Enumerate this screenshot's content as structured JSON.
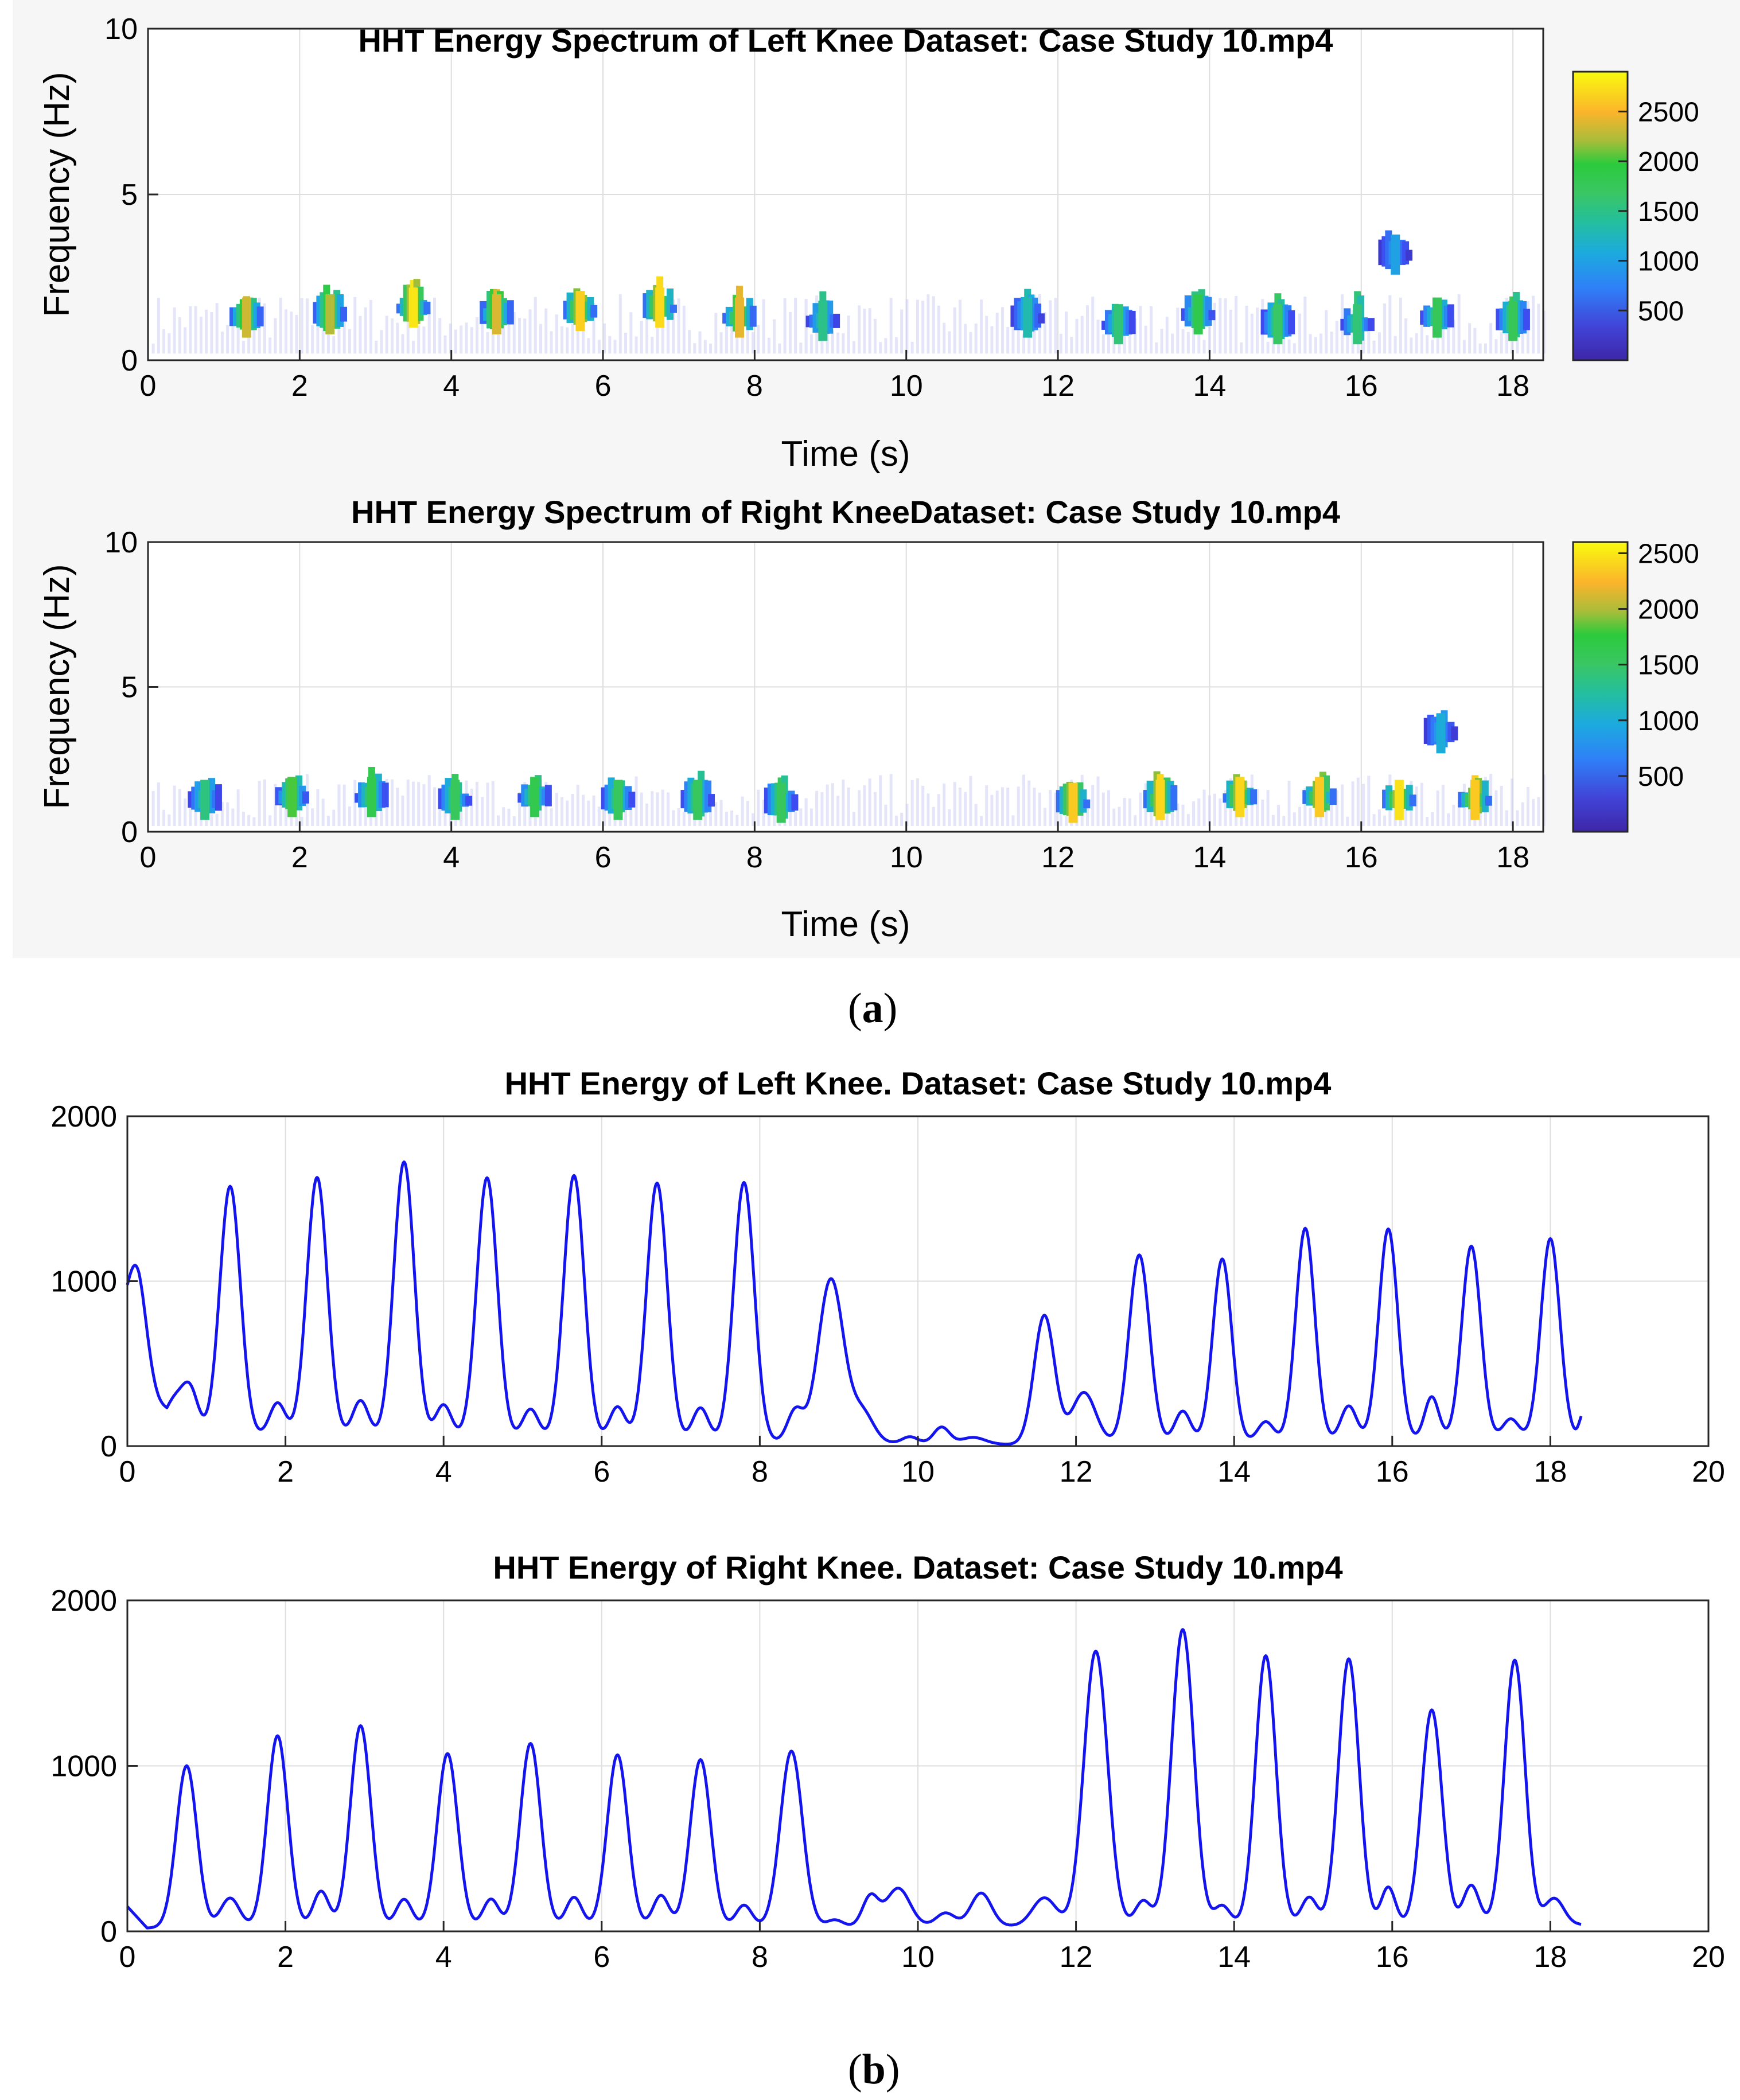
{
  "colors": {
    "line": "#1414ee",
    "axis": "#262626",
    "grid": "#dedede",
    "colormap": [
      "#3e26a8",
      "#3e4af0",
      "#2f80f8",
      "#1caadf",
      "#24bf9d",
      "#3ac663",
      "#2bcb3c",
      "#a8bd3a",
      "#fbb42b",
      "#f9fb0e"
    ]
  },
  "panel_labels": {
    "a": "a",
    "b": "b"
  },
  "chart_data": [
    {
      "id": "spec-left",
      "type": "heatmap",
      "title": "HHT Energy Spectrum of Left Knee Dataset: Case Study 10.mp4",
      "xlabel": "Time (s)",
      "ylabel": "Frequency (Hz)",
      "xlim": [
        0,
        18.4
      ],
      "ylim": [
        0,
        10
      ],
      "xticks": [
        0,
        2,
        4,
        6,
        8,
        10,
        12,
        14,
        16,
        18
      ],
      "yticks": [
        0,
        5,
        10
      ],
      "grid": true,
      "colorbar": {
        "range": [
          0,
          2900
        ],
        "ticks": [
          500,
          1000,
          1500,
          2000,
          2500
        ]
      },
      "points": [
        {
          "t": 1.3,
          "f": 1.2,
          "e": 2400
        },
        {
          "t": 2.4,
          "f": 1.3,
          "e": 2300
        },
        {
          "t": 3.5,
          "f": 1.5,
          "e": 2800
        },
        {
          "t": 4.6,
          "f": 1.3,
          "e": 2450
        },
        {
          "t": 5.7,
          "f": 1.4,
          "e": 2700
        },
        {
          "t": 6.75,
          "f": 1.5,
          "e": 2750
        },
        {
          "t": 7.8,
          "f": 1.2,
          "e": 2500
        },
        {
          "t": 8.9,
          "f": 1.1,
          "e": 1400
        },
        {
          "t": 11.6,
          "f": 1.2,
          "e": 1200
        },
        {
          "t": 12.8,
          "f": 1.0,
          "e": 1500
        },
        {
          "t": 13.85,
          "f": 1.3,
          "e": 1800
        },
        {
          "t": 14.9,
          "f": 1.0,
          "e": 1600
        },
        {
          "t": 15.95,
          "f": 1.0,
          "e": 1500
        },
        {
          "t": 16.45,
          "f": 3.1,
          "e": 900
        },
        {
          "t": 17.0,
          "f": 1.2,
          "e": 1700
        },
        {
          "t": 18.0,
          "f": 1.1,
          "e": 1700
        }
      ]
    },
    {
      "id": "spec-right",
      "type": "heatmap",
      "title": "HHT Energy Spectrum of Right KneeDataset: Case Study 10.mp4",
      "xlabel": "Time (s)",
      "ylabel": "Frequency (Hz)",
      "xlim": [
        0,
        18.4
      ],
      "ylim": [
        0,
        10
      ],
      "xticks": [
        0,
        2,
        4,
        6,
        8,
        10,
        12,
        14,
        16,
        18
      ],
      "yticks": [
        0,
        5,
        10
      ],
      "grid": true,
      "colorbar": {
        "range": [
          0,
          2600
        ],
        "ticks": [
          500,
          1000,
          1500,
          2000,
          2500
        ]
      },
      "points": [
        {
          "t": 0.75,
          "f": 1.0,
          "e": 1300
        },
        {
          "t": 1.9,
          "f": 1.1,
          "e": 1800
        },
        {
          "t": 2.95,
          "f": 1.1,
          "e": 1600
        },
        {
          "t": 4.05,
          "f": 1.0,
          "e": 1500
        },
        {
          "t": 5.1,
          "f": 1.1,
          "e": 1600
        },
        {
          "t": 6.2,
          "f": 1.0,
          "e": 1500
        },
        {
          "t": 7.25,
          "f": 1.0,
          "e": 1500
        },
        {
          "t": 8.35,
          "f": 0.9,
          "e": 1500
        },
        {
          "t": 12.2,
          "f": 0.9,
          "e": 2400
        },
        {
          "t": 13.35,
          "f": 1.0,
          "e": 2450
        },
        {
          "t": 14.4,
          "f": 1.1,
          "e": 2450
        },
        {
          "t": 15.45,
          "f": 1.1,
          "e": 2400
        },
        {
          "t": 16.5,
          "f": 1.0,
          "e": 2500
        },
        {
          "t": 17.05,
          "f": 3.3,
          "e": 900
        },
        {
          "t": 17.5,
          "f": 1.0,
          "e": 2400
        }
      ]
    },
    {
      "id": "energy-left",
      "type": "line",
      "title": "HHT Energy of Left Knee. Dataset: Case Study 10.mp4",
      "xlabel": "",
      "ylabel": "",
      "xlim": [
        0,
        20
      ],
      "ylim": [
        0,
        2000
      ],
      "xticks": [
        0,
        2,
        4,
        6,
        8,
        10,
        12,
        14,
        16,
        18,
        20
      ],
      "yticks": [
        0,
        1000,
        2000
      ],
      "grid": true,
      "baseline": [
        [
          0,
          650
        ],
        [
          0.15,
          520
        ],
        [
          0.5,
          70
        ],
        [
          10.2,
          15
        ],
        [
          11.2,
          10
        ],
        [
          18.4,
          50
        ]
      ],
      "peaks": [
        {
          "t": 0.12,
          "v": 540,
          "w": 0.12
        },
        {
          "t": 0.6,
          "v": 210,
          "w": 0.13
        },
        {
          "t": 0.8,
          "v": 240,
          "w": 0.1
        },
        {
          "t": 1.3,
          "v": 1510,
          "w": 0.13
        },
        {
          "t": 1.9,
          "v": 200,
          "w": 0.1
        },
        {
          "t": 2.4,
          "v": 1570,
          "w": 0.13
        },
        {
          "t": 2.95,
          "v": 220,
          "w": 0.1
        },
        {
          "t": 3.5,
          "v": 1670,
          "w": 0.13
        },
        {
          "t": 4.0,
          "v": 200,
          "w": 0.1
        },
        {
          "t": 4.55,
          "v": 1580,
          "w": 0.13
        },
        {
          "t": 5.1,
          "v": 180,
          "w": 0.1
        },
        {
          "t": 5.65,
          "v": 1600,
          "w": 0.13
        },
        {
          "t": 6.2,
          "v": 200,
          "w": 0.1
        },
        {
          "t": 6.7,
          "v": 1560,
          "w": 0.13
        },
        {
          "t": 7.25,
          "v": 200,
          "w": 0.1
        },
        {
          "t": 7.8,
          "v": 1570,
          "w": 0.13
        },
        {
          "t": 8.45,
          "v": 190,
          "w": 0.1
        },
        {
          "t": 8.9,
          "v": 990,
          "w": 0.16
        },
        {
          "t": 9.3,
          "v": 180,
          "w": 0.14
        },
        {
          "t": 9.9,
          "v": 40,
          "w": 0.1
        },
        {
          "t": 10.3,
          "v": 100,
          "w": 0.1
        },
        {
          "t": 10.7,
          "v": 40,
          "w": 0.15
        },
        {
          "t": 11.6,
          "v": 780,
          "w": 0.13
        },
        {
          "t": 12.1,
          "v": 310,
          "w": 0.15
        },
        {
          "t": 12.8,
          "v": 1140,
          "w": 0.13
        },
        {
          "t": 13.35,
          "v": 190,
          "w": 0.1
        },
        {
          "t": 13.85,
          "v": 1110,
          "w": 0.12
        },
        {
          "t": 14.4,
          "v": 120,
          "w": 0.1
        },
        {
          "t": 14.9,
          "v": 1290,
          "w": 0.12
        },
        {
          "t": 15.45,
          "v": 210,
          "w": 0.1
        },
        {
          "t": 15.95,
          "v": 1280,
          "w": 0.12
        },
        {
          "t": 16.5,
          "v": 260,
          "w": 0.09
        },
        {
          "t": 17.0,
          "v": 1170,
          "w": 0.12
        },
        {
          "t": 17.5,
          "v": 120,
          "w": 0.1
        },
        {
          "t": 18.0,
          "v": 1210,
          "w": 0.12
        },
        {
          "t": 18.42,
          "v": 150,
          "w": 0.05
        }
      ]
    },
    {
      "id": "energy-right",
      "type": "line",
      "title": "HHT Energy of Right Knee. Dataset: Case Study 10.mp4",
      "xlabel": "",
      "ylabel": "",
      "xlim": [
        0,
        20
      ],
      "ylim": [
        0,
        2000
      ],
      "xticks": [
        0,
        2,
        4,
        6,
        8,
        10,
        12,
        14,
        16,
        18,
        20
      ],
      "yticks": [
        0,
        1000,
        2000
      ],
      "grid": true,
      "baseline": [
        [
          0,
          150
        ],
        [
          0.25,
          20
        ],
        [
          18.4,
          40
        ]
      ],
      "peaks": [
        {
          "t": 0.75,
          "v": 980,
          "w": 0.13
        },
        {
          "t": 1.3,
          "v": 180,
          "w": 0.12
        },
        {
          "t": 1.9,
          "v": 1160,
          "w": 0.13
        },
        {
          "t": 2.45,
          "v": 220,
          "w": 0.1
        },
        {
          "t": 2.95,
          "v": 1220,
          "w": 0.13
        },
        {
          "t": 3.5,
          "v": 170,
          "w": 0.1
        },
        {
          "t": 4.05,
          "v": 1050,
          "w": 0.13
        },
        {
          "t": 4.6,
          "v": 170,
          "w": 0.1
        },
        {
          "t": 5.1,
          "v": 1110,
          "w": 0.13
        },
        {
          "t": 5.65,
          "v": 180,
          "w": 0.1
        },
        {
          "t": 6.2,
          "v": 1040,
          "w": 0.13
        },
        {
          "t": 6.75,
          "v": 190,
          "w": 0.1
        },
        {
          "t": 7.25,
          "v": 1010,
          "w": 0.13
        },
        {
          "t": 7.8,
          "v": 130,
          "w": 0.1
        },
        {
          "t": 8.4,
          "v": 1060,
          "w": 0.14
        },
        {
          "t": 8.95,
          "v": 40,
          "w": 0.1
        },
        {
          "t": 9.4,
          "v": 180,
          "w": 0.1
        },
        {
          "t": 9.75,
          "v": 230,
          "w": 0.15
        },
        {
          "t": 10.35,
          "v": 80,
          "w": 0.12
        },
        {
          "t": 10.8,
          "v": 200,
          "w": 0.13
        },
        {
          "t": 11.6,
          "v": 170,
          "w": 0.15
        },
        {
          "t": 12.25,
          "v": 1660,
          "w": 0.15
        },
        {
          "t": 12.85,
          "v": 150,
          "w": 0.1
        },
        {
          "t": 13.35,
          "v": 1790,
          "w": 0.14
        },
        {
          "t": 13.85,
          "v": 120,
          "w": 0.1
        },
        {
          "t": 14.4,
          "v": 1630,
          "w": 0.13
        },
        {
          "t": 14.95,
          "v": 170,
          "w": 0.1
        },
        {
          "t": 15.45,
          "v": 1610,
          "w": 0.13
        },
        {
          "t": 15.95,
          "v": 230,
          "w": 0.09
        },
        {
          "t": 16.5,
          "v": 1300,
          "w": 0.13
        },
        {
          "t": 17.0,
          "v": 240,
          "w": 0.1
        },
        {
          "t": 17.55,
          "v": 1600,
          "w": 0.13
        },
        {
          "t": 18.05,
          "v": 160,
          "w": 0.12
        }
      ]
    }
  ]
}
